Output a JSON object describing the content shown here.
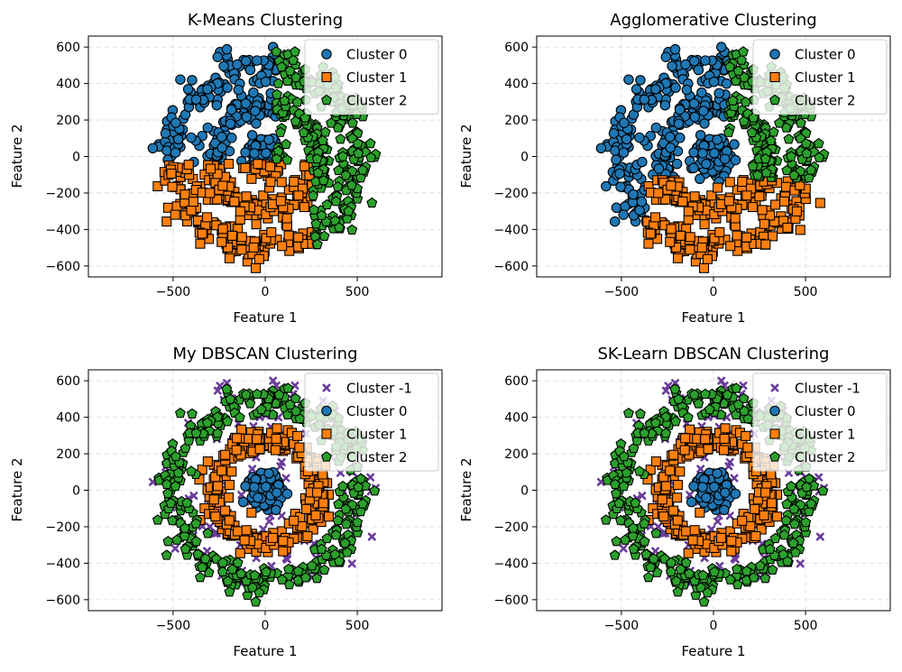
{
  "figure": {
    "colors": {
      "cluster_-1": "#6a3d9a",
      "cluster_0": "#1f77b4",
      "cluster_1": "#ff7f0e",
      "cluster_2": "#2ca02c"
    }
  },
  "chart_data": [
    {
      "type": "scatter",
      "title": "K-Means Clustering",
      "xlabel": "Feature 1",
      "ylabel": "Feature 2",
      "xlim": [
        -960,
        960
      ],
      "ylim": [
        -660,
        660
      ],
      "xticks": [
        -500,
        0,
        500
      ],
      "yticks": [
        -600,
        -400,
        -200,
        0,
        200,
        400,
        600
      ],
      "grid": true,
      "legend": "top-right",
      "assignment": "kmeans",
      "series": [
        {
          "name": "Cluster 0",
          "marker": "circle",
          "color": "#1f77b4"
        },
        {
          "name": "Cluster 1",
          "marker": "square",
          "color": "#ff7f0e"
        },
        {
          "name": "Cluster 2",
          "marker": "pentagon",
          "color": "#2ca02c"
        }
      ]
    },
    {
      "type": "scatter",
      "title": "Agglomerative Clustering",
      "xlabel": "Feature 1",
      "ylabel": "Feature 2",
      "xlim": [
        -960,
        960
      ],
      "ylim": [
        -660,
        660
      ],
      "xticks": [
        -500,
        0,
        500
      ],
      "yticks": [
        -600,
        -400,
        -200,
        0,
        200,
        400,
        600
      ],
      "grid": true,
      "legend": "top-right",
      "assignment": "agglomerative",
      "series": [
        {
          "name": "Cluster 0",
          "marker": "circle",
          "color": "#1f77b4"
        },
        {
          "name": "Cluster 1",
          "marker": "square",
          "color": "#ff7f0e"
        },
        {
          "name": "Cluster 2",
          "marker": "pentagon",
          "color": "#2ca02c"
        }
      ]
    },
    {
      "type": "scatter",
      "title": "My DBSCAN Clustering",
      "xlabel": "Feature 1",
      "ylabel": "Feature 2",
      "xlim": [
        -960,
        960
      ],
      "ylim": [
        -660,
        660
      ],
      "xticks": [
        -500,
        0,
        500
      ],
      "yticks": [
        -600,
        -400,
        -200,
        0,
        200,
        400,
        600
      ],
      "grid": true,
      "legend": "top-right",
      "assignment": "dbscan",
      "series": [
        {
          "name": "Cluster -1",
          "marker": "x",
          "color": "#6a3d9a"
        },
        {
          "name": "Cluster 0",
          "marker": "circle",
          "color": "#1f77b4"
        },
        {
          "name": "Cluster 1",
          "marker": "square",
          "color": "#ff7f0e"
        },
        {
          "name": "Cluster 2",
          "marker": "pentagon",
          "color": "#2ca02c"
        }
      ]
    },
    {
      "type": "scatter",
      "title": "SK-Learn DBSCAN Clustering",
      "xlabel": "Feature 1",
      "ylabel": "Feature 2",
      "xlim": [
        -960,
        960
      ],
      "ylim": [
        -660,
        660
      ],
      "xticks": [
        -500,
        0,
        500
      ],
      "yticks": [
        -600,
        -400,
        -200,
        0,
        200,
        400,
        600
      ],
      "grid": true,
      "legend": "top-right",
      "assignment": "dbscan",
      "series": [
        {
          "name": "Cluster -1",
          "marker": "x",
          "color": "#6a3d9a"
        },
        {
          "name": "Cluster 0",
          "marker": "circle",
          "color": "#1f77b4"
        },
        {
          "name": "Cluster 1",
          "marker": "square",
          "color": "#ff7f0e"
        },
        {
          "name": "Cluster 2",
          "marker": "pentagon",
          "color": "#2ca02c"
        }
      ]
    }
  ]
}
